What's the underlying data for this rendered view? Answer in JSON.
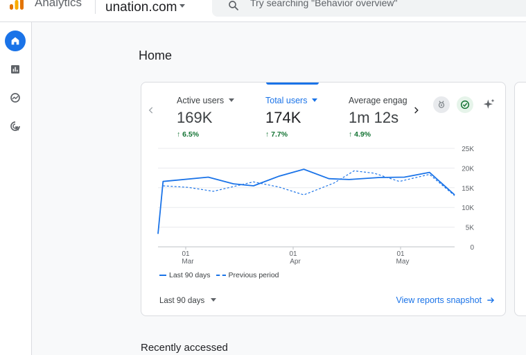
{
  "header": {
    "app_name": "Analytics",
    "property": "unation.com",
    "search_placeholder": "Try searching \"Behavior overview\""
  },
  "sidenav": {
    "items": [
      {
        "name": "home",
        "icon": "home-icon",
        "active": true
      },
      {
        "name": "reports",
        "icon": "bar-chart-icon",
        "active": false
      },
      {
        "name": "explore",
        "icon": "explore-icon",
        "active": false
      },
      {
        "name": "advertising",
        "icon": "cursor-target-icon",
        "active": false
      }
    ]
  },
  "page": {
    "title": "Home"
  },
  "card": {
    "metrics": [
      {
        "label": "Active users",
        "value": "169K",
        "change": "6.5%",
        "selected": false
      },
      {
        "label": "Total users",
        "value": "174K",
        "change": "7.7%",
        "selected": true
      },
      {
        "label": "Average engag",
        "value": "1m 12s",
        "change": "4.9%",
        "selected": false
      }
    ],
    "range_label": "Last 90 days",
    "snapshot_link": "View reports snapshot"
  },
  "chart_data": {
    "type": "line",
    "y_ticks": [
      "25K",
      "20K",
      "15K",
      "10K",
      "5K",
      "0"
    ],
    "ylim": [
      0,
      25000
    ],
    "x_ticks": [
      {
        "day": "01",
        "month": "Mar",
        "index": 8
      },
      {
        "day": "01",
        "month": "Apr",
        "index": 39
      },
      {
        "day": "01",
        "month": "May",
        "index": 70
      }
    ],
    "series": [
      {
        "name": "Last 90 days",
        "style": "solid",
        "points": [
          [
            0,
            3300
          ],
          [
            1,
            16600
          ],
          [
            10,
            17700
          ],
          [
            15,
            16000
          ],
          [
            19,
            15500
          ],
          [
            24,
            17900
          ],
          [
            29,
            19700
          ],
          [
            34,
            17300
          ],
          [
            38,
            17100
          ],
          [
            44,
            17600
          ],
          [
            49,
            17700
          ],
          [
            54,
            18900
          ],
          [
            59,
            13200
          ]
        ]
      },
      {
        "name": "Previous period",
        "style": "dashed",
        "points": [
          [
            1,
            15500
          ],
          [
            6,
            15100
          ],
          [
            11,
            14100
          ],
          [
            19,
            16500
          ],
          [
            24,
            15200
          ],
          [
            29,
            13200
          ],
          [
            35,
            16200
          ],
          [
            39,
            19300
          ],
          [
            43,
            18700
          ],
          [
            48,
            16600
          ],
          [
            54,
            18400
          ],
          [
            59,
            13000
          ]
        ]
      }
    ]
  },
  "recent": {
    "title": "Recently accessed"
  },
  "colors": {
    "accent": "#1a73e8",
    "positive": "#137333"
  }
}
